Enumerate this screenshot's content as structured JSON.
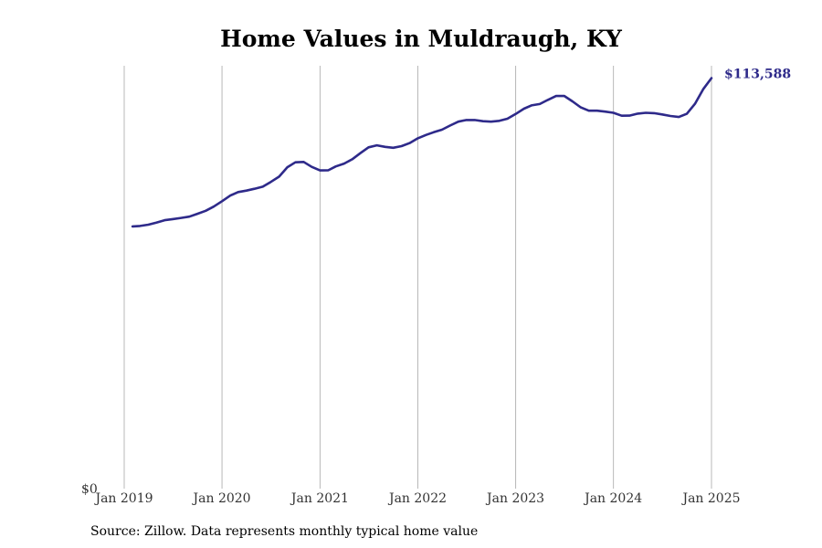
{
  "chart_data": {
    "type": "line",
    "title": "Home Values in Muldraugh, KY",
    "xlabel": "",
    "ylabel": "",
    "x_ticks": [
      "Jan 2019",
      "Jan 2020",
      "Jan 2021",
      "Jan 2022",
      "Jan 2023",
      "Jan 2024",
      "Jan 2025"
    ],
    "y_ticks": [
      "$0"
    ],
    "ylim": [
      0,
      117000
    ],
    "grid": "vertical",
    "line_color": "#2e2a8a",
    "end_label": "$113,588",
    "series": [
      {
        "values": [
          [
            "2019-02",
            72550
          ],
          [
            "2019-03",
            72680
          ],
          [
            "2019-04",
            73020
          ],
          [
            "2019-05",
            73620
          ],
          [
            "2019-06",
            74260
          ],
          [
            "2019-07",
            74570
          ],
          [
            "2019-08",
            74900
          ],
          [
            "2019-09",
            75260
          ],
          [
            "2019-10",
            76040
          ],
          [
            "2019-11",
            76880
          ],
          [
            "2019-12",
            78030
          ],
          [
            "2020-01",
            79520
          ],
          [
            "2020-02",
            81090
          ],
          [
            "2020-03",
            82060
          ],
          [
            "2020-04",
            82450
          ],
          [
            "2020-05",
            82950
          ],
          [
            "2020-06",
            83550
          ],
          [
            "2020-07",
            84860
          ],
          [
            "2020-08",
            86320
          ],
          [
            "2020-09",
            88930
          ],
          [
            "2020-10",
            90290
          ],
          [
            "2020-11",
            90400
          ],
          [
            "2020-12",
            89020
          ],
          [
            "2021-01",
            88030
          ],
          [
            "2021-02",
            88100
          ],
          [
            "2021-03",
            89140
          ],
          [
            "2021-04",
            89940
          ],
          [
            "2021-05",
            91120
          ],
          [
            "2021-06",
            92830
          ],
          [
            "2021-07",
            94440
          ],
          [
            "2021-08",
            95000
          ],
          [
            "2021-09",
            94570
          ],
          [
            "2021-10",
            94320
          ],
          [
            "2021-11",
            94760
          ],
          [
            "2021-12",
            95600
          ],
          [
            "2022-01",
            96930
          ],
          [
            "2022-02",
            97860
          ],
          [
            "2022-03",
            98600
          ],
          [
            "2022-04",
            99300
          ],
          [
            "2022-05",
            100440
          ],
          [
            "2022-06",
            101540
          ],
          [
            "2022-07",
            102000
          ],
          [
            "2022-08",
            102000
          ],
          [
            "2022-09",
            101670
          ],
          [
            "2022-10",
            101540
          ],
          [
            "2022-11",
            101770
          ],
          [
            "2022-12",
            102350
          ],
          [
            "2023-01",
            103650
          ],
          [
            "2023-02",
            105120
          ],
          [
            "2023-03",
            106030
          ],
          [
            "2023-04",
            106420
          ],
          [
            "2023-05",
            107550
          ],
          [
            "2023-06",
            108630
          ],
          [
            "2023-07",
            108650
          ],
          [
            "2023-08",
            107150
          ],
          [
            "2023-09",
            105470
          ],
          [
            "2023-10",
            104570
          ],
          [
            "2023-11",
            104570
          ],
          [
            "2023-12",
            104310
          ],
          [
            "2024-01",
            103980
          ],
          [
            "2024-02",
            103180
          ],
          [
            "2024-03",
            103210
          ],
          [
            "2024-04",
            103770
          ],
          [
            "2024-05",
            103990
          ],
          [
            "2024-06",
            103880
          ],
          [
            "2024-07",
            103520
          ],
          [
            "2024-08",
            103090
          ],
          [
            "2024-09",
            102820
          ],
          [
            "2024-10",
            103700
          ],
          [
            "2024-11",
            106550
          ],
          [
            "2024-12",
            110500
          ],
          [
            "2025-01",
            113588
          ]
        ]
      }
    ]
  },
  "footer": {
    "source": "Source: Zillow. Data represents monthly typical home value"
  }
}
